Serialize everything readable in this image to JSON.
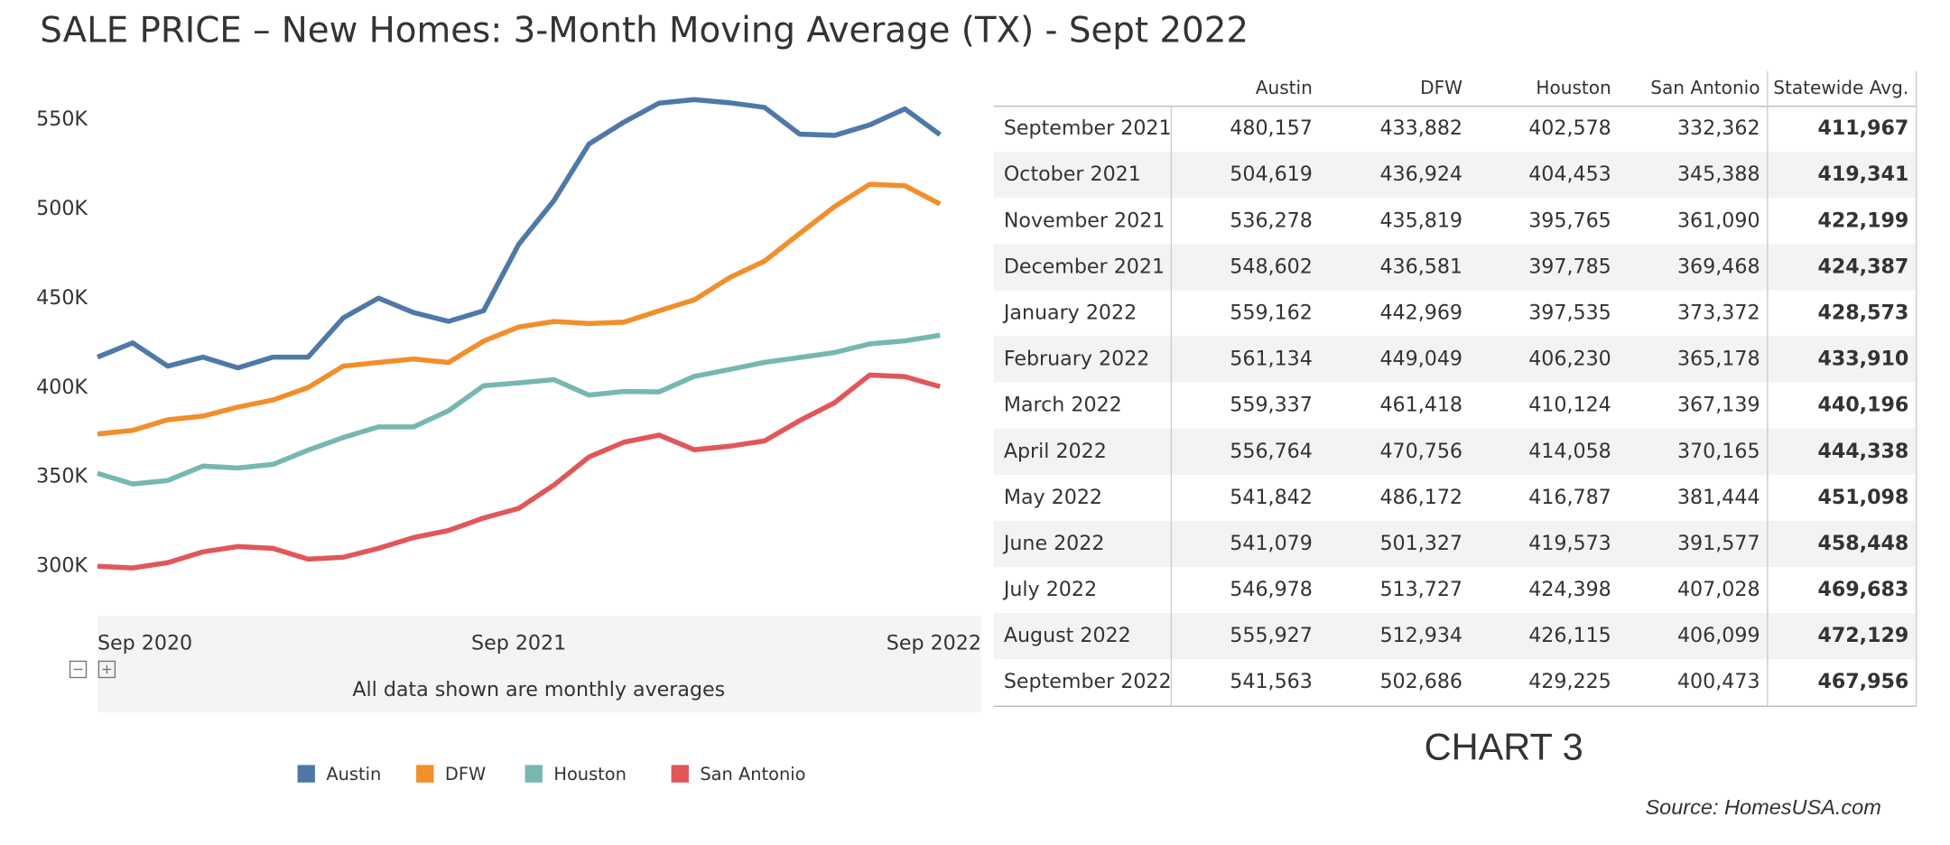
{
  "title": "SALE PRICE – New Homes: 3-Month Moving Average (TX)  - Sept 2022",
  "chart_data": {
    "type": "line",
    "categories": [
      "Sep 2020",
      null,
      null,
      null,
      null,
      null,
      null,
      null,
      null,
      null,
      null,
      null,
      "Sep 2021",
      null,
      null,
      null,
      null,
      null,
      null,
      null,
      null,
      null,
      null,
      null,
      "Sep 2022"
    ],
    "series": [
      {
        "name": "Austin",
        "color": "#4e79a7",
        "values": [
          417000,
          425000,
          412000,
          417000,
          411000,
          417000,
          417000,
          439000,
          450000,
          442000,
          437000,
          443000,
          480157,
          504619,
          536278,
          548602,
          559162,
          561134,
          559337,
          556764,
          541842,
          541079,
          546978,
          555927,
          541563
        ]
      },
      {
        "name": "DFW",
        "color": "#f28e2b",
        "values": [
          374000,
          376000,
          382000,
          384000,
          389000,
          393000,
          400000,
          412000,
          414000,
          416000,
          414000,
          426000,
          433882,
          436924,
          435819,
          436581,
          442969,
          449049,
          461418,
          470756,
          486172,
          501327,
          513727,
          512934,
          502686
        ]
      },
      {
        "name": "Houston",
        "color": "#76b7b2",
        "values": [
          352000,
          346000,
          348000,
          356000,
          355000,
          357000,
          365000,
          372000,
          378000,
          378000,
          387000,
          401000,
          402578,
          404453,
          395765,
          397785,
          397535,
          406230,
          410124,
          414058,
          416787,
          419573,
          424398,
          426115,
          429225
        ]
      },
      {
        "name": "San Antonio",
        "color": "#e15759",
        "values": [
          300000,
          299000,
          302000,
          308000,
          311000,
          310000,
          304000,
          305000,
          310000,
          316000,
          320000,
          327000,
          332362,
          345388,
          361090,
          369468,
          373372,
          365178,
          367139,
          370165,
          381444,
          391577,
          407028,
          406099,
          400473
        ]
      }
    ],
    "ylim": [
      272000,
      577000
    ],
    "yticks": [
      {
        "value": 300000,
        "label": "300K"
      },
      {
        "value": 350000,
        "label": "350K"
      },
      {
        "value": 400000,
        "label": "400K"
      },
      {
        "value": 450000,
        "label": "450K"
      },
      {
        "value": 500000,
        "label": "500K"
      },
      {
        "value": 550000,
        "label": "550K"
      }
    ],
    "note": "All data shown are monthly averages"
  },
  "table": {
    "columns": [
      "Austin",
      "DFW",
      "Houston",
      "San Antonio",
      "Statewide Avg."
    ],
    "rows": [
      {
        "label": "September 2021",
        "cells": [
          "480,157",
          "433,882",
          "402,578",
          "332,362",
          "411,967"
        ]
      },
      {
        "label": "October 2021",
        "cells": [
          "504,619",
          "436,924",
          "404,453",
          "345,388",
          "419,341"
        ]
      },
      {
        "label": "November 2021",
        "cells": [
          "536,278",
          "435,819",
          "395,765",
          "361,090",
          "422,199"
        ]
      },
      {
        "label": "December 2021",
        "cells": [
          "548,602",
          "436,581",
          "397,785",
          "369,468",
          "424,387"
        ]
      },
      {
        "label": "January 2022",
        "cells": [
          "559,162",
          "442,969",
          "397,535",
          "373,372",
          "428,573"
        ]
      },
      {
        "label": "February 2022",
        "cells": [
          "561,134",
          "449,049",
          "406,230",
          "365,178",
          "433,910"
        ]
      },
      {
        "label": "March 2022",
        "cells": [
          "559,337",
          "461,418",
          "410,124",
          "367,139",
          "440,196"
        ]
      },
      {
        "label": "April 2022",
        "cells": [
          "556,764",
          "470,756",
          "414,058",
          "370,165",
          "444,338"
        ]
      },
      {
        "label": "May 2022",
        "cells": [
          "541,842",
          "486,172",
          "416,787",
          "381,444",
          "451,098"
        ]
      },
      {
        "label": "June 2022",
        "cells": [
          "541,079",
          "501,327",
          "419,573",
          "391,577",
          "458,448"
        ]
      },
      {
        "label": "July 2022",
        "cells": [
          "546,978",
          "513,727",
          "424,398",
          "407,028",
          "469,683"
        ]
      },
      {
        "label": "August 2022",
        "cells": [
          "555,927",
          "512,934",
          "426,115",
          "406,099",
          "472,129"
        ]
      },
      {
        "label": "September 2022",
        "cells": [
          "541,563",
          "502,686",
          "429,225",
          "400,473",
          "467,956"
        ]
      }
    ]
  },
  "chart_label": "CHART 3",
  "source": "Source: HomesUSA.com"
}
